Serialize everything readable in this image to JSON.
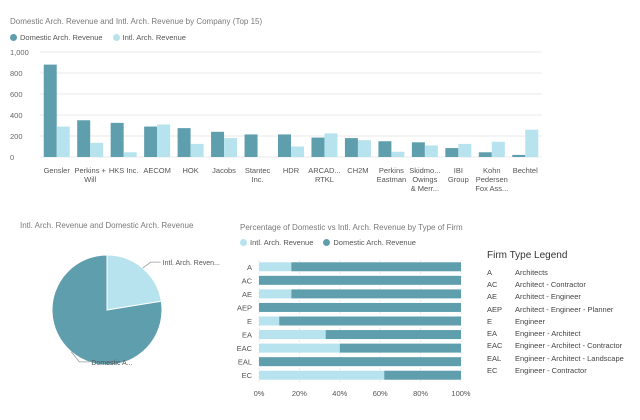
{
  "colors": {
    "domestic": "#5f9ead",
    "intl": "#b7e3ee",
    "grid": "#e8e8e8",
    "axis": "#777777"
  },
  "chart_data": [
    {
      "type": "bar",
      "title": "Domestic Arch. Revenue and Intl. Arch. Revenue by Company (Top 15)",
      "categories": [
        "Gensler",
        "Perkins + Will",
        "HKS Inc.",
        "AECOM",
        "HOK",
        "Jacobs",
        "Stantec Inc.",
        "HDR",
        "ARCAD... RTKL",
        "CH2M",
        "Perkins Eastman",
        "Skidmo... Owings & Merr...",
        "IBI Group",
        "Kohn Pedersen Fox Ass...",
        "Bechtel"
      ],
      "category_lines": [
        [
          "Gensler"
        ],
        [
          "Perkins +",
          "Will"
        ],
        [
          "HKS Inc."
        ],
        [
          "AECOM"
        ],
        [
          "HOK"
        ],
        [
          "Jacobs"
        ],
        [
          "Stantec",
          "Inc."
        ],
        [
          "HDR"
        ],
        [
          "ARCAD...",
          "RTKL"
        ],
        [
          "CH2M"
        ],
        [
          "Perkins",
          "Eastman"
        ],
        [
          "Skidmo...",
          "Owings",
          "& Merr..."
        ],
        [
          "IBI",
          "Group"
        ],
        [
          "Kohn",
          "Pedersen",
          "Fox Ass..."
        ],
        [
          "Bechtel"
        ]
      ],
      "series": [
        {
          "name": "Domestic Arch. Revenue",
          "values": [
            880,
            350,
            325,
            290,
            275,
            240,
            215,
            215,
            185,
            180,
            150,
            140,
            85,
            45,
            20
          ]
        },
        {
          "name": "Intl. Arch. Revenue",
          "values": [
            290,
            135,
            45,
            310,
            125,
            180,
            0,
            100,
            225,
            160,
            50,
            110,
            125,
            145,
            260
          ]
        }
      ],
      "yticks": [
        0,
        200,
        400,
        600,
        800,
        1000
      ],
      "ytick_labels": [
        "0",
        "200",
        "400",
        "600",
        "800",
        "1,000"
      ],
      "ylim": [
        0,
        1000
      ],
      "grid": true
    },
    {
      "type": "pie",
      "title": "Intl. Arch. Revenue and Domestic Arch. Revenue",
      "slices": [
        {
          "name": "Intl. Arch. Revenue",
          "label": "Intl. Arch. Reven...",
          "value": 2260
        },
        {
          "name": "Domestic Arch. Revenue",
          "label": "Domestic A...",
          "value": 7800
        }
      ]
    },
    {
      "type": "bar",
      "orientation": "horizontal",
      "stacked": "100%",
      "title": "Percentage of Domestic vs Intl. Arch. Revenue by Type of Firm",
      "categories": [
        "A",
        "AC",
        "AE",
        "AEP",
        "E",
        "EA",
        "EAC",
        "EAL",
        "EC"
      ],
      "series": [
        {
          "name": "Intl. Arch. Revenue",
          "values": [
            16,
            0,
            16,
            0,
            10,
            33,
            40,
            0,
            62
          ]
        },
        {
          "name": "Domestic Arch. Revenue",
          "values": [
            84,
            100,
            84,
            100,
            90,
            67,
            60,
            100,
            38
          ]
        }
      ],
      "xticks": [
        0,
        20,
        40,
        60,
        80,
        100
      ],
      "xtick_labels": [
        "0%",
        "20%",
        "40%",
        "60%",
        "80%",
        "100%"
      ],
      "xlim": [
        0,
        100
      ]
    }
  ],
  "firm_type_legend": {
    "title": "Firm Type Legend",
    "items": [
      {
        "code": "A",
        "desc": "Architects"
      },
      {
        "code": "AC",
        "desc": "Architect - Contractor"
      },
      {
        "code": "AE",
        "desc": "Architect - Engineer"
      },
      {
        "code": "AEP",
        "desc": "Architect - Engineer - Planner"
      },
      {
        "code": "E",
        "desc": "Engineer"
      },
      {
        "code": "EA",
        "desc": "Engineer - Architect"
      },
      {
        "code": "EAC",
        "desc": "Engineer - Architect - Contractor"
      },
      {
        "code": "EAL",
        "desc": "Engineer - Architect - Landscape"
      },
      {
        "code": "EC",
        "desc": "Engineer - Contractor"
      }
    ]
  }
}
